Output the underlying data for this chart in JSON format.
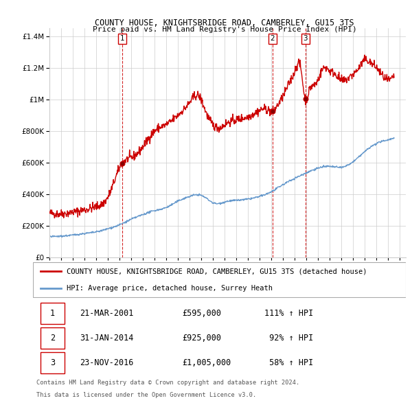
{
  "title1": "COUNTY HOUSE, KNIGHTSBRIDGE ROAD, CAMBERLEY, GU15 3TS",
  "title2": "Price paid vs. HM Land Registry's House Price Index (HPI)",
  "red_label": "COUNTY HOUSE, KNIGHTSBRIDGE ROAD, CAMBERLEY, GU15 3TS (detached house)",
  "blue_label": "HPI: Average price, detached house, Surrey Heath",
  "sale_points": [
    {
      "num": 1,
      "date": "21-MAR-2001",
      "price": 595000,
      "pct": "111%",
      "dir": "↑",
      "x_year": 2001.22
    },
    {
      "num": 2,
      "date": "31-JAN-2014",
      "price": 925000,
      "pct": "92%",
      "dir": "↑",
      "x_year": 2014.08
    },
    {
      "num": 3,
      "date": "23-NOV-2016",
      "price": 1005000,
      "pct": "58%",
      "dir": "↑",
      "x_year": 2016.9
    }
  ],
  "footer1": "Contains HM Land Registry data © Crown copyright and database right 2024.",
  "footer2": "This data is licensed under the Open Government Licence v3.0.",
  "ylim": [
    0,
    1450000
  ],
  "xlim_start": 1995.0,
  "xlim_end": 2025.5,
  "red_color": "#cc0000",
  "blue_color": "#6699cc",
  "vline_color": "#cc0000",
  "grid_color": "#cccccc",
  "background_color": "#ffffff",
  "red_anchors": [
    [
      1995.0,
      280000
    ],
    [
      1996.0,
      275000
    ],
    [
      1997.0,
      285000
    ],
    [
      1998.0,
      300000
    ],
    [
      1999.0,
      320000
    ],
    [
      2000.0,
      380000
    ],
    [
      2001.22,
      595000
    ],
    [
      2002.0,
      630000
    ],
    [
      2003.0,
      700000
    ],
    [
      2004.0,
      800000
    ],
    [
      2005.0,
      840000
    ],
    [
      2006.0,
      900000
    ],
    [
      2007.0,
      980000
    ],
    [
      2007.8,
      1020000
    ],
    [
      2008.5,
      900000
    ],
    [
      2009.0,
      840000
    ],
    [
      2009.5,
      820000
    ],
    [
      2010.0,
      840000
    ],
    [
      2010.5,
      860000
    ],
    [
      2011.0,
      870000
    ],
    [
      2011.5,
      880000
    ],
    [
      2012.0,
      890000
    ],
    [
      2012.5,
      910000
    ],
    [
      2013.0,
      930000
    ],
    [
      2013.5,
      940000
    ],
    [
      2014.08,
      925000
    ],
    [
      2014.5,
      960000
    ],
    [
      2015.0,
      1020000
    ],
    [
      2015.5,
      1100000
    ],
    [
      2016.0,
      1180000
    ],
    [
      2016.5,
      1200000
    ],
    [
      2016.9,
      1005000
    ],
    [
      2017.2,
      1050000
    ],
    [
      2017.8,
      1100000
    ],
    [
      2018.5,
      1200000
    ],
    [
      2019.0,
      1180000
    ],
    [
      2019.5,
      1160000
    ],
    [
      2020.0,
      1120000
    ],
    [
      2020.5,
      1130000
    ],
    [
      2021.0,
      1160000
    ],
    [
      2021.5,
      1200000
    ],
    [
      2022.0,
      1250000
    ],
    [
      2022.5,
      1230000
    ],
    [
      2023.0,
      1200000
    ],
    [
      2023.5,
      1150000
    ],
    [
      2024.0,
      1120000
    ],
    [
      2024.5,
      1150000
    ]
  ],
  "blue_anchors": [
    [
      1995.0,
      130000
    ],
    [
      1996.0,
      133000
    ],
    [
      1997.0,
      140000
    ],
    [
      1998.0,
      150000
    ],
    [
      1999.0,
      160000
    ],
    [
      2000.0,
      180000
    ],
    [
      2001.0,
      205000
    ],
    [
      2002.0,
      240000
    ],
    [
      2003.0,
      270000
    ],
    [
      2004.0,
      295000
    ],
    [
      2005.0,
      315000
    ],
    [
      2006.0,
      355000
    ],
    [
      2007.0,
      385000
    ],
    [
      2007.8,
      395000
    ],
    [
      2008.5,
      370000
    ],
    [
      2009.0,
      345000
    ],
    [
      2009.5,
      340000
    ],
    [
      2010.0,
      350000
    ],
    [
      2011.0,
      360000
    ],
    [
      2012.0,
      368000
    ],
    [
      2013.0,
      385000
    ],
    [
      2014.0,
      415000
    ],
    [
      2015.0,
      460000
    ],
    [
      2016.0,
      500000
    ],
    [
      2017.0,
      535000
    ],
    [
      2018.0,
      565000
    ],
    [
      2019.0,
      575000
    ],
    [
      2020.0,
      570000
    ],
    [
      2021.0,
      605000
    ],
    [
      2022.0,
      670000
    ],
    [
      2023.0,
      720000
    ],
    [
      2024.0,
      745000
    ],
    [
      2024.5,
      755000
    ]
  ]
}
